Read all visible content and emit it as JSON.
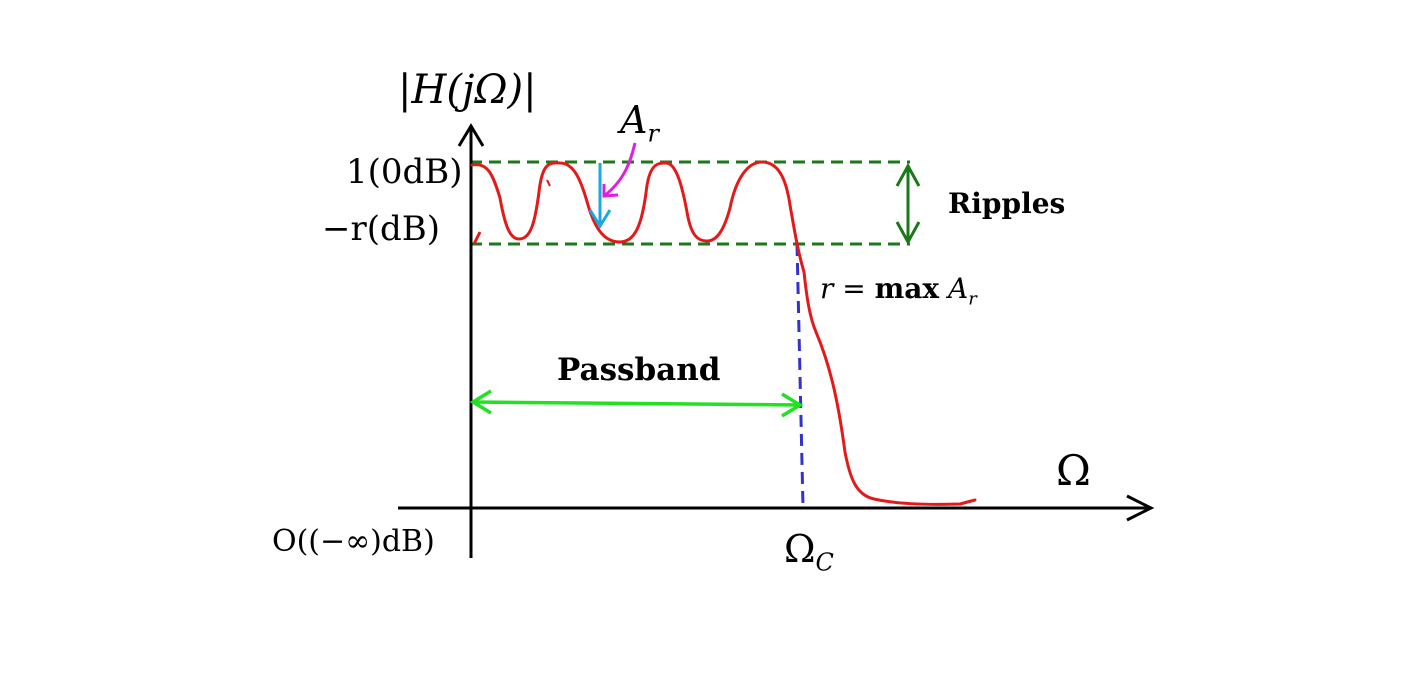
{
  "labels": {
    "y_axis": "|H(jΩ)|",
    "x_axis": "Ω",
    "one_db": "1(0dB)",
    "minus_r_db": "−r(dB)",
    "origin": "O((−∞)dB)",
    "omega_c": "Ω",
    "omega_c_sub": "C",
    "a_r": "A",
    "a_r_sub": "r",
    "ripples": "Ripples",
    "r_eq_r": "r",
    "r_eq_eq": " = ",
    "r_eq_max": "max",
    "r_eq_a": " A",
    "r_eq_sub": "r",
    "passband": "Passband"
  },
  "colors": {
    "response_curve": "#e41a1a",
    "ripple_bounds": "#1a7a1a",
    "ripple_arrow": "#1a7a1a",
    "passband_arrow": "#22e022",
    "cutoff_line": "#3333cc",
    "a_r_drop_arrow": "#1aa8e0",
    "a_r_pointer": "#e020e0",
    "axes": "#000000"
  },
  "icons": {
    "axis_arrowheads": "arrow-icon",
    "ripple_arrow": "double-arrow-icon",
    "passband_arrow": "double-arrow-icon",
    "a_r_pointer": "curved-arrow-icon"
  }
}
